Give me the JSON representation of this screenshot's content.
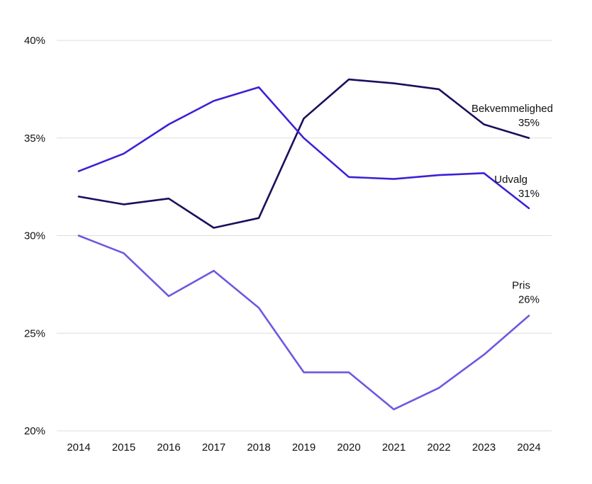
{
  "chart_data": {
    "type": "line",
    "title": "",
    "xlabel": "",
    "ylabel": "",
    "x": [
      "2014",
      "2015",
      "2016",
      "2017",
      "2018",
      "2019",
      "2020",
      "2021",
      "2022",
      "2023",
      "2024"
    ],
    "ylim": [
      20,
      40
    ],
    "yticks": [
      20,
      25,
      30,
      35,
      40
    ],
    "ytick_labels": [
      "20%",
      "25%",
      "30%",
      "35%",
      "40%"
    ],
    "grid": true,
    "legend": "none",
    "series": [
      {
        "name": "Bekvemmelighed",
        "end_label": "35%",
        "color": "#1a0f5c",
        "values": [
          32.0,
          31.6,
          31.9,
          30.4,
          30.9,
          36.0,
          38.0,
          37.8,
          37.5,
          35.7,
          35.0
        ]
      },
      {
        "name": "Udvalg",
        "end_label": "31%",
        "color": "#3a22d6",
        "values": [
          33.3,
          34.2,
          35.7,
          36.9,
          37.6,
          35.0,
          33.0,
          32.9,
          33.1,
          33.2,
          31.4
        ]
      },
      {
        "name": "Pris",
        "end_label": "26%",
        "color": "#6e58e0",
        "values": [
          30.0,
          29.1,
          26.9,
          28.2,
          26.3,
          23.0,
          23.0,
          21.1,
          22.2,
          23.9,
          25.9
        ]
      }
    ]
  }
}
